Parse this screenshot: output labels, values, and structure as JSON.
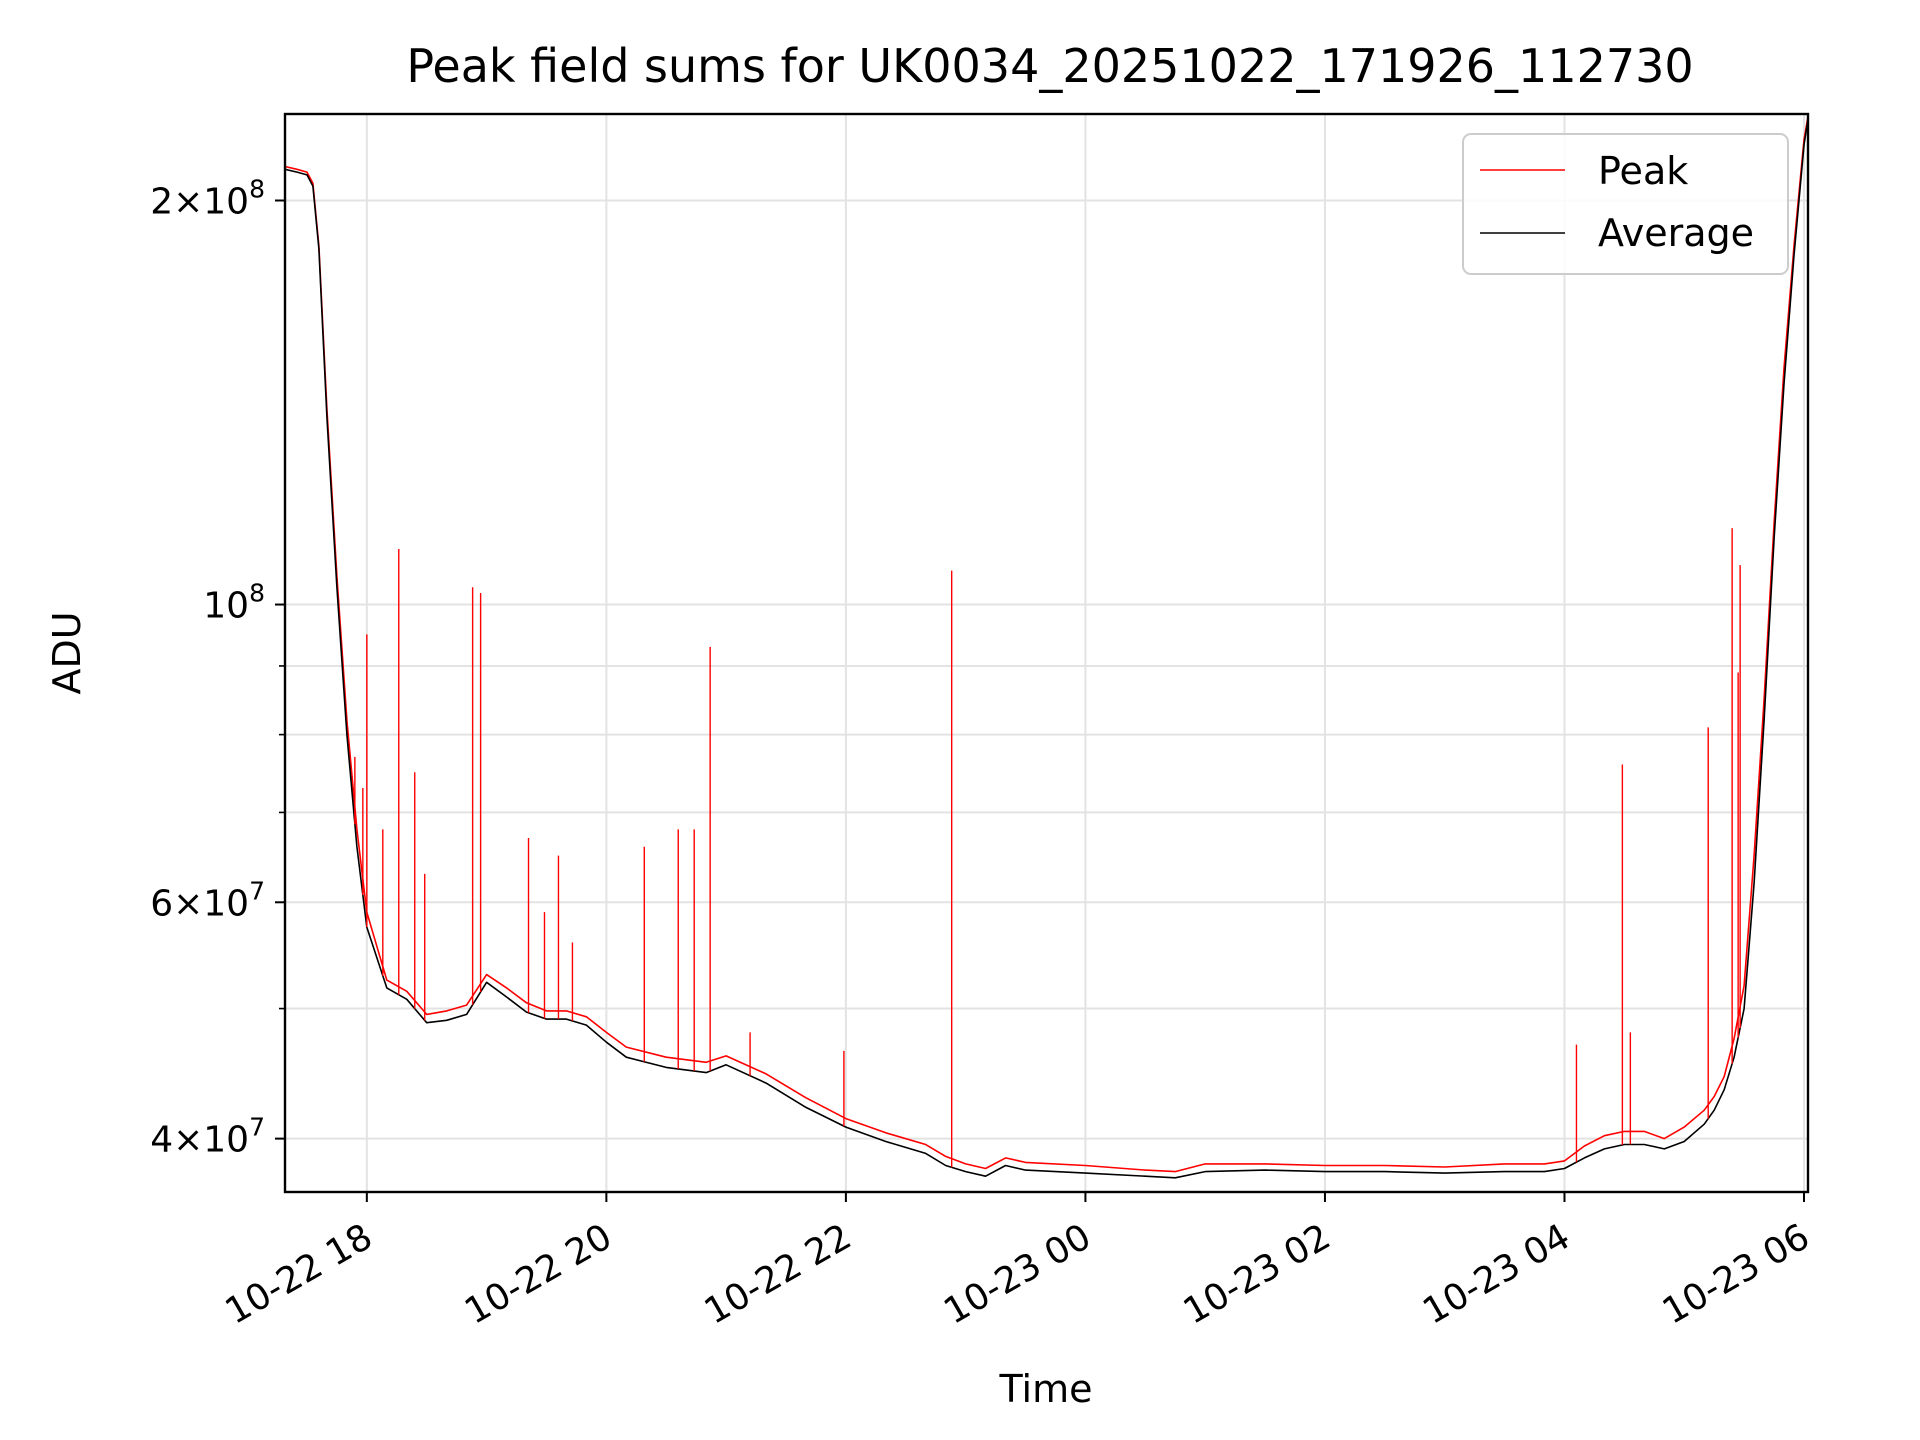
{
  "chart_data": {
    "type": "line",
    "title": "Peak field sums for UK0034_20251022_171926_112730",
    "xlabel": "Time",
    "ylabel": "ADU",
    "y_scale": "log",
    "ylim": [
      36500000,
      232000000
    ],
    "xlim": [
      "2025-10-22T17:19:00",
      "2025-10-23T06:02:00"
    ],
    "grid": true,
    "legend_position": "upper right",
    "x_ticks": [
      {
        "t": "2025-10-22T18:00:00",
        "label": "10-22 18"
      },
      {
        "t": "2025-10-22T20:00:00",
        "label": "10-22 20"
      },
      {
        "t": "2025-10-22T22:00:00",
        "label": "10-22 22"
      },
      {
        "t": "2025-10-23T00:00:00",
        "label": "10-23 00"
      },
      {
        "t": "2025-10-23T02:00:00",
        "label": "10-23 02"
      },
      {
        "t": "2025-10-23T04:00:00",
        "label": "10-23 04"
      },
      {
        "t": "2025-10-23T06:00:00",
        "label": "10-23 06"
      }
    ],
    "y_ticks": [
      {
        "value": 40000000,
        "base": "4",
        "sup": "7"
      },
      {
        "value": 60000000,
        "base": "6",
        "sup": "7"
      },
      {
        "value": 100000000,
        "base": "",
        "sup": "8"
      },
      {
        "value": 200000000,
        "base": "2",
        "sup": "8"
      }
    ],
    "y_minor_ticks": [
      50000000,
      70000000,
      80000000,
      90000000
    ],
    "series": [
      {
        "name": "Peak",
        "color": "#ff0000",
        "x": [
          "2025-10-22T17:19:00",
          "2025-10-22T17:25:00",
          "2025-10-22T17:30:00",
          "2025-10-22T17:33:00",
          "2025-10-22T17:36:00",
          "2025-10-22T17:40:00",
          "2025-10-22T17:45:00",
          "2025-10-22T17:50:00",
          "2025-10-22T17:55:00",
          "2025-10-22T18:00:00",
          "2025-10-22T18:10:00",
          "2025-10-22T18:20:00",
          "2025-10-22T18:30:00",
          "2025-10-22T18:40:00",
          "2025-10-22T18:50:00",
          "2025-10-22T19:00:00",
          "2025-10-22T19:10:00",
          "2025-10-22T19:20:00",
          "2025-10-22T19:30:00",
          "2025-10-22T19:40:00",
          "2025-10-22T19:50:00",
          "2025-10-22T20:00:00",
          "2025-10-22T20:10:00",
          "2025-10-22T20:30:00",
          "2025-10-22T20:50:00",
          "2025-10-22T21:00:00",
          "2025-10-22T21:20:00",
          "2025-10-22T21:40:00",
          "2025-10-22T22:00:00",
          "2025-10-22T22:20:00",
          "2025-10-22T22:40:00",
          "2025-10-22T22:50:00",
          "2025-10-22T23:00:00",
          "2025-10-22T23:10:00",
          "2025-10-22T23:20:00",
          "2025-10-22T23:30:00",
          "2025-10-23T00:00:00",
          "2025-10-23T00:30:00",
          "2025-10-23T00:45:00",
          "2025-10-23T01:00:00",
          "2025-10-23T01:30:00",
          "2025-10-23T02:00:00",
          "2025-10-23T02:30:00",
          "2025-10-23T03:00:00",
          "2025-10-23T03:30:00",
          "2025-10-23T03:50:00",
          "2025-10-23T04:00:00",
          "2025-10-23T04:10:00",
          "2025-10-23T04:20:00",
          "2025-10-23T04:30:00",
          "2025-10-23T04:40:00",
          "2025-10-23T04:50:00",
          "2025-10-23T05:00:00",
          "2025-10-23T05:10:00",
          "2025-10-23T05:15:00",
          "2025-10-23T05:20:00",
          "2025-10-23T05:25:00",
          "2025-10-23T05:30:00",
          "2025-10-23T05:35:00",
          "2025-10-23T05:40:00",
          "2025-10-23T05:45:00",
          "2025-10-23T05:50:00",
          "2025-10-23T05:55:00",
          "2025-10-23T06:00:00",
          "2025-10-23T06:02:00"
        ],
        "y": [
          212000000,
          211000000,
          210000000,
          206000000,
          185000000,
          140000000,
          105000000,
          82000000,
          68000000,
          59000000,
          52500000,
          51500000,
          49500000,
          49800000,
          50300000,
          53000000,
          51800000,
          50500000,
          49800000,
          49800000,
          49300000,
          48000000,
          46800000,
          46000000,
          45600000,
          46100000,
          44700000,
          42900000,
          41400000,
          40400000,
          39600000,
          38800000,
          38300000,
          38000000,
          38700000,
          38400000,
          38200000,
          37900000,
          37800000,
          38300000,
          38300000,
          38200000,
          38200000,
          38100000,
          38300000,
          38300000,
          38500000,
          39500000,
          40200000,
          40500000,
          40500000,
          40000000,
          40800000,
          42000000,
          43000000,
          44500000,
          47500000,
          52000000,
          65000000,
          85000000,
          115000000,
          150000000,
          185000000,
          222000000,
          231000000
        ]
      },
      {
        "name": "Average",
        "color": "#000000",
        "x": [
          "2025-10-22T17:19:00",
          "2025-10-22T17:25:00",
          "2025-10-22T17:30:00",
          "2025-10-22T17:33:00",
          "2025-10-22T17:36:00",
          "2025-10-22T17:40:00",
          "2025-10-22T17:45:00",
          "2025-10-22T17:50:00",
          "2025-10-22T17:55:00",
          "2025-10-22T18:00:00",
          "2025-10-22T18:10:00",
          "2025-10-22T18:20:00",
          "2025-10-22T18:30:00",
          "2025-10-22T18:40:00",
          "2025-10-22T18:50:00",
          "2025-10-22T19:00:00",
          "2025-10-22T19:10:00",
          "2025-10-22T19:20:00",
          "2025-10-22T19:30:00",
          "2025-10-22T19:40:00",
          "2025-10-22T19:50:00",
          "2025-10-22T20:00:00",
          "2025-10-22T20:10:00",
          "2025-10-22T20:30:00",
          "2025-10-22T20:50:00",
          "2025-10-22T21:00:00",
          "2025-10-22T21:20:00",
          "2025-10-22T21:40:00",
          "2025-10-22T22:00:00",
          "2025-10-22T22:20:00",
          "2025-10-22T22:40:00",
          "2025-10-22T22:50:00",
          "2025-10-22T23:00:00",
          "2025-10-22T23:10:00",
          "2025-10-22T23:20:00",
          "2025-10-22T23:30:00",
          "2025-10-23T00:00:00",
          "2025-10-23T00:30:00",
          "2025-10-23T00:45:00",
          "2025-10-23T01:00:00",
          "2025-10-23T01:30:00",
          "2025-10-23T02:00:00",
          "2025-10-23T02:30:00",
          "2025-10-23T03:00:00",
          "2025-10-23T03:30:00",
          "2025-10-23T03:50:00",
          "2025-10-23T04:00:00",
          "2025-10-23T04:10:00",
          "2025-10-23T04:20:00",
          "2025-10-23T04:30:00",
          "2025-10-23T04:40:00",
          "2025-10-23T04:50:00",
          "2025-10-23T05:00:00",
          "2025-10-23T05:10:00",
          "2025-10-23T05:15:00",
          "2025-10-23T05:20:00",
          "2025-10-23T05:25:00",
          "2025-10-23T05:30:00",
          "2025-10-23T05:35:00",
          "2025-10-23T05:40:00",
          "2025-10-23T05:45:00",
          "2025-10-23T05:50:00",
          "2025-10-23T05:55:00",
          "2025-10-23T06:00:00",
          "2025-10-23T06:02:00"
        ],
        "y": [
          211000000,
          210000000,
          209000000,
          205000000,
          184000000,
          138000000,
          103000000,
          80000000,
          66000000,
          57500000,
          51800000,
          50800000,
          48800000,
          49000000,
          49500000,
          52300000,
          51000000,
          49700000,
          49100000,
          49100000,
          48600000,
          47200000,
          46000000,
          45200000,
          44800000,
          45400000,
          44000000,
          42200000,
          40800000,
          39800000,
          39000000,
          38200000,
          37800000,
          37500000,
          38200000,
          37900000,
          37700000,
          37500000,
          37400000,
          37800000,
          37900000,
          37800000,
          37800000,
          37700000,
          37800000,
          37800000,
          38000000,
          38700000,
          39300000,
          39600000,
          39600000,
          39300000,
          39800000,
          41000000,
          42000000,
          43500000,
          46000000,
          50000000,
          62000000,
          82000000,
          112000000,
          146000000,
          182000000,
          220000000,
          230000000
        ]
      }
    ],
    "peak_spikes": [
      {
        "t": "2025-10-22T17:54:00",
        "value": 77000000
      },
      {
        "t": "2025-10-22T17:58:00",
        "value": 73000000
      },
      {
        "t": "2025-10-22T18:00:00",
        "value": 95000000
      },
      {
        "t": "2025-10-22T18:08:00",
        "value": 68000000
      },
      {
        "t": "2025-10-22T18:16:00",
        "value": 110000000
      },
      {
        "t": "2025-10-22T18:24:00",
        "value": 75000000
      },
      {
        "t": "2025-10-22T18:29:00",
        "value": 63000000
      },
      {
        "t": "2025-10-22T18:53:00",
        "value": 103000000
      },
      {
        "t": "2025-10-22T18:57:00",
        "value": 102000000
      },
      {
        "t": "2025-10-22T19:21:00",
        "value": 67000000
      },
      {
        "t": "2025-10-22T19:29:00",
        "value": 59000000
      },
      {
        "t": "2025-10-22T19:36:00",
        "value": 65000000
      },
      {
        "t": "2025-10-22T19:43:00",
        "value": 56000000
      },
      {
        "t": "2025-10-22T20:19:00",
        "value": 66000000
      },
      {
        "t": "2025-10-22T20:36:00",
        "value": 68000000
      },
      {
        "t": "2025-10-22T20:44:00",
        "value": 68000000
      },
      {
        "t": "2025-10-22T20:52:00",
        "value": 93000000
      },
      {
        "t": "2025-10-22T21:12:00",
        "value": 48000000
      },
      {
        "t": "2025-10-22T21:59:00",
        "value": 46500000
      },
      {
        "t": "2025-10-22T22:53:00",
        "value": 106000000
      },
      {
        "t": "2025-10-23T04:06:00",
        "value": 47000000
      },
      {
        "t": "2025-10-23T04:29:00",
        "value": 76000000
      },
      {
        "t": "2025-10-23T04:33:00",
        "value": 48000000
      },
      {
        "t": "2025-10-23T05:12:00",
        "value": 81000000
      },
      {
        "t": "2025-10-23T05:24:00",
        "value": 114000000
      },
      {
        "t": "2025-10-23T05:27:00",
        "value": 89000000
      },
      {
        "t": "2025-10-23T05:28:00",
        "value": 107000000
      }
    ]
  }
}
